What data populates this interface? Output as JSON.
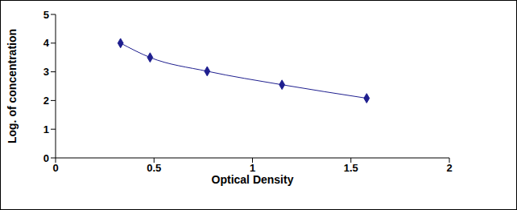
{
  "chart_data": {
    "type": "line",
    "x_label": "Optical Density",
    "y_label": "Log. of concentration",
    "x": [
      0.33,
      0.48,
      0.77,
      1.15,
      1.58
    ],
    "values": [
      4.0,
      3.5,
      3.02,
      2.55,
      2.08
    ],
    "color": "#1f1f8f",
    "marker": "diamond",
    "line_style": "smooth",
    "xlim": [
      0,
      2
    ],
    "xticks": [
      0,
      0.5,
      1,
      1.5,
      2
    ],
    "ylim": [
      0,
      5
    ],
    "yticks": [
      0,
      1,
      2,
      3,
      4,
      5
    ],
    "grid": false
  }
}
